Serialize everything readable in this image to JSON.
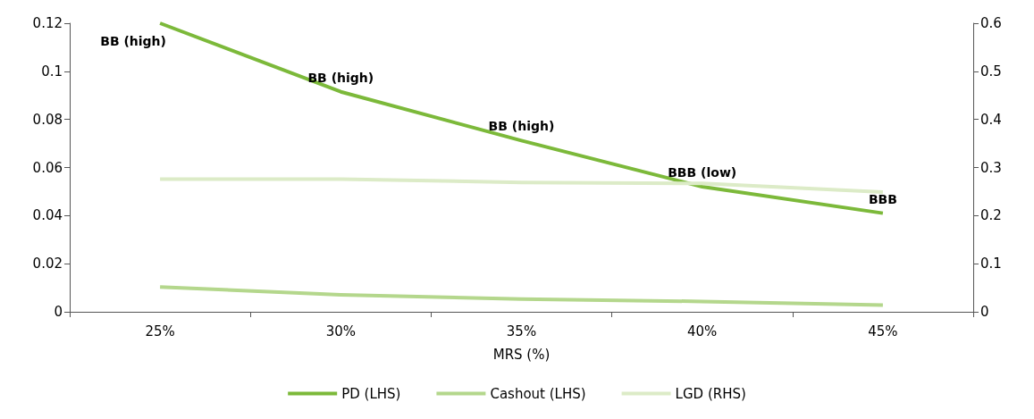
{
  "chart_data": {
    "type": "line",
    "xlabel": "MRS (%)",
    "categories": [
      "25%",
      "30%",
      "35%",
      "40%",
      "45%"
    ],
    "series": [
      {
        "name": "PD (LHS)",
        "color": "#7cb93a",
        "values": [
          0.12,
          0.0915,
          0.0712,
          0.052,
          0.041
        ]
      },
      {
        "name": "Cashout (LHS)",
        "color": "#b4d78c",
        "values": [
          0.0103,
          0.0071,
          0.0053,
          0.0043,
          0.0028
        ]
      },
      {
        "name": "LGD (RHS)",
        "color": "#dcebc7",
        "values": [
          0.276,
          0.276,
          0.269,
          0.267,
          0.249
        ],
        "axis": "y2"
      }
    ],
    "ylim": [
      0,
      0.12
    ],
    "yticks": [
      0,
      0.02,
      0.04,
      0.06,
      0.08,
      0.1,
      0.12
    ],
    "y2lim": [
      0,
      0.6
    ],
    "y2ticks": [
      0,
      0.1,
      0.2,
      0.3,
      0.4,
      0.5,
      0.6
    ],
    "annotations": [
      {
        "text": "BB (high)",
        "x": "25%",
        "y": 0.12
      },
      {
        "text": "BB (high)",
        "x": "30%",
        "y": 0.0915
      },
      {
        "text": "BB (high)",
        "x": "35%",
        "y": 0.0712
      },
      {
        "text": "BBB (low)",
        "x": "40%",
        "y": 0.052
      },
      {
        "text": "BBB",
        "x": "45%",
        "y": 0.041
      }
    ],
    "legend": "bottom",
    "grid": false,
    "marker": "none",
    "line_style": "solid"
  }
}
